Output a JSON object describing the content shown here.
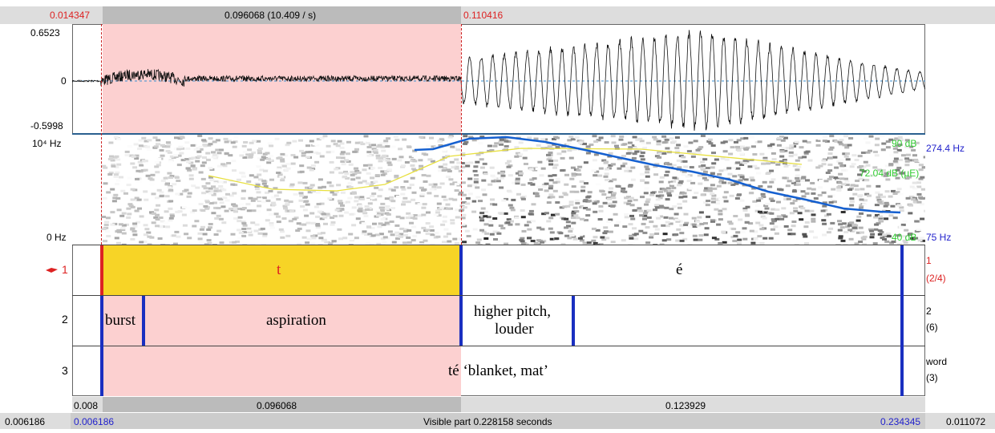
{
  "top_bar": {
    "left_time": "0.014347",
    "selection": "0.096068 (10.409 / s)",
    "right_time": "0.110416"
  },
  "waveform": {
    "max": "0.6523",
    "zero": "0",
    "min": "-0.5998"
  },
  "spectrogram": {
    "top_freq": "10⁴ Hz",
    "bottom_freq": "0 Hz",
    "intensity_top": "90 dB",
    "intensity_value": "72.04 dB (µE)",
    "intensity_bottom": "40 dB",
    "pitch_top": "274.4 Hz",
    "pitch_bottom": "75 Hz"
  },
  "tiers": [
    {
      "number": "1",
      "info": [
        "1",
        "(2/4)"
      ],
      "intervals": [
        "t",
        "é"
      ]
    },
    {
      "number": "2",
      "info": [
        "2",
        "(6)"
      ],
      "intervals": [
        "burst",
        "aspiration",
        [
          "higher pitch,",
          "louder"
        ]
      ]
    },
    {
      "number": "3",
      "info": [
        "word",
        "(3)"
      ],
      "intervals": [
        "té ‘blanket, mat’"
      ]
    }
  ],
  "durations": {
    "start": "0.008",
    "selection": "0.096068",
    "rest": "0.123929"
  },
  "status": {
    "left_outside": "0.006186",
    "start": "0.006186",
    "visible": "Visible part 0.228158 seconds",
    "end": "0.234345",
    "right_outside": "0.011072"
  }
}
